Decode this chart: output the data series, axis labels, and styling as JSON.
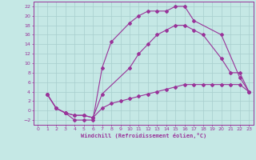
{
  "xlabel": "Windchill (Refroidissement éolien,°C)",
  "xlim": [
    -0.5,
    23.5
  ],
  "ylim": [
    -3,
    23
  ],
  "xticks": [
    0,
    1,
    2,
    3,
    4,
    5,
    6,
    7,
    8,
    9,
    10,
    11,
    12,
    13,
    14,
    15,
    16,
    17,
    18,
    19,
    20,
    21,
    22,
    23
  ],
  "yticks": [
    -2,
    0,
    2,
    4,
    6,
    8,
    10,
    12,
    14,
    16,
    18,
    20,
    22
  ],
  "background_color": "#c5e8e5",
  "line_color": "#993399",
  "grid_color": "#a8cece",
  "curve1_x": [
    1,
    2,
    3,
    4,
    5,
    6,
    7,
    8,
    10,
    11,
    12,
    13,
    14,
    15,
    16,
    17,
    20,
    22,
    23
  ],
  "curve1_y": [
    3.5,
    0.5,
    -0.5,
    -2,
    -2,
    -2,
    9,
    14.5,
    18.5,
    20,
    21,
    21,
    21,
    22,
    22,
    19,
    16,
    7,
    4
  ],
  "curve2_x": [
    1,
    2,
    3,
    4,
    5,
    6,
    7,
    10,
    11,
    12,
    13,
    14,
    15,
    16,
    17,
    18,
    20,
    21,
    22,
    23
  ],
  "curve2_y": [
    3.5,
    0.5,
    -0.5,
    -1,
    -1,
    -1.5,
    3.5,
    9,
    12,
    14,
    16,
    17,
    18,
    18,
    17,
    16,
    11,
    8,
    8,
    4
  ],
  "curve3_x": [
    1,
    2,
    3,
    4,
    5,
    6,
    7,
    8,
    9,
    10,
    11,
    12,
    13,
    14,
    15,
    16,
    17,
    18,
    19,
    20,
    21,
    22,
    23
  ],
  "curve3_y": [
    3.5,
    0.5,
    -0.5,
    -1,
    -1,
    -1.5,
    0.5,
    1.5,
    2,
    2.5,
    3,
    3.5,
    4,
    4.5,
    5,
    5.5,
    5.5,
    5.5,
    5.5,
    5.5,
    5.5,
    5.5,
    4
  ]
}
